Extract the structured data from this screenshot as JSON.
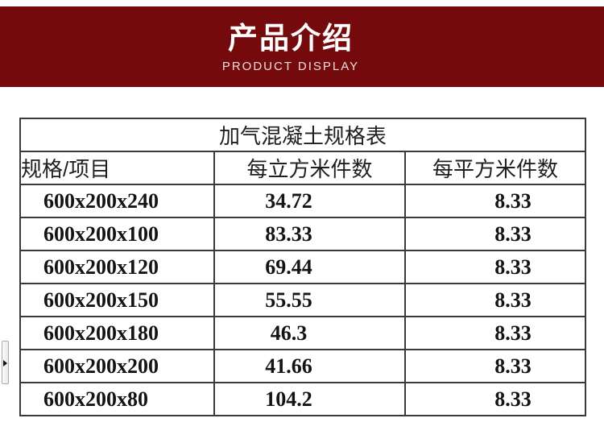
{
  "banner": {
    "title": "产品介绍",
    "subtitle": "PRODUCT DISPLAY",
    "bg_color": "#750a0c",
    "title_color": "#ffffff",
    "subtitle_color": "#ecdfdf"
  },
  "table": {
    "title": "加气混凝土规格表",
    "columns": [
      "规格/项目",
      "每立方米件数",
      "每平方米件数"
    ],
    "rows": [
      [
        "600x200x240",
        "34.72",
        "8.33"
      ],
      [
        "600x200x100",
        "83.33",
        "8.33"
      ],
      [
        "600x200x120",
        "69.44",
        "8.33"
      ],
      [
        "600x200x150",
        "55.55",
        "8.33"
      ],
      [
        "600x200x180",
        "46.3",
        "8.33"
      ],
      [
        "600x200x200",
        "41.66",
        "8.33"
      ],
      [
        "600x200x80",
        "104.2",
        "8.33"
      ]
    ],
    "border_color": "#3a3a3a"
  },
  "side_handle": {
    "icon": "arrow-right-icon"
  }
}
